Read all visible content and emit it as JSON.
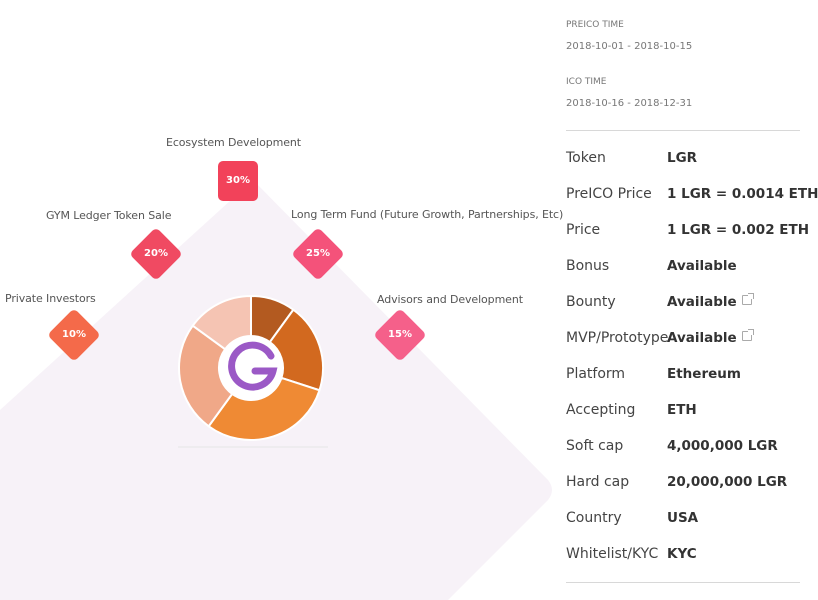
{
  "chart_data": {
    "type": "pie",
    "categories": [
      "Ecosystem Development",
      "GYM Ledger Token Sale",
      "Long Term Fund (Future Growth, Partnerships, Etc)",
      "Private Investors",
      "Advisors and Development"
    ],
    "values": [
      30,
      20,
      25,
      10,
      15
    ],
    "value_labels": [
      "30%",
      "20%",
      "25%",
      "10%",
      "15%"
    ],
    "badge_colors": [
      "#f2425a",
      "#f04a62",
      "#f4527a",
      "#f46a4a",
      "#f5608a"
    ],
    "slice_colors": [
      "#b35a20",
      "#d2691f",
      "#ef8a34",
      "#f0a888",
      "#f5c4b3"
    ],
    "slice_values": [
      10,
      20,
      30,
      25,
      15
    ],
    "legend": "none",
    "center_logo": "gymledger-g-logo"
  },
  "panel": {
    "preico_label": "PREICO TIME",
    "preico_dates": "2018-10-01 - 2018-10-15",
    "ico_label": "ICO TIME",
    "ico_dates": "2018-10-16 - 2018-12-31",
    "rows": [
      {
        "label": "Token",
        "value": "LGR"
      },
      {
        "label": "PreICO Price",
        "value": "1 LGR = 0.0014 ETH"
      },
      {
        "label": "Price",
        "value": "1 LGR = 0.002 ETH"
      },
      {
        "label": "Bonus",
        "value": "Available"
      },
      {
        "label": "Bounty",
        "value": "Available"
      },
      {
        "label": "MVP/Prototype",
        "value": "Available"
      },
      {
        "label": "Platform",
        "value": "Ethereum"
      },
      {
        "label": "Accepting",
        "value": "ETH"
      },
      {
        "label": "Soft cap",
        "value": "4,000,000 LGR"
      },
      {
        "label": "Hard cap",
        "value": "20,000,000 LGR"
      },
      {
        "label": "Country",
        "value": "USA"
      },
      {
        "label": "Whitelist/KYC",
        "value": "KYC"
      }
    ],
    "link_icon_rows": [
      4,
      5
    ]
  },
  "colors": {
    "background_diamond": "#f7f2f8",
    "logo_purple": "#9b59c6"
  }
}
